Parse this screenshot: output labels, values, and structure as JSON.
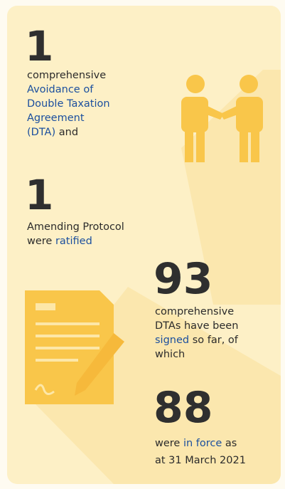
{
  "blocks": [
    {
      "number": 1,
      "text": [
        "comprehensive",
        "Avoidance of",
        "Double Taxation",
        "Agreement",
        "(DTA)",
        "and"
      ]
    },
    {
      "number": 1,
      "text": [
        "Amending Protocol",
        "were",
        "ratified"
      ]
    },
    {
      "number": 93,
      "text": [
        "comprehensive",
        "DTAs have been",
        "signed",
        "so far, of",
        "which"
      ]
    },
    {
      "number": 88,
      "text": [
        "were",
        "in force",
        "as",
        "at 31 March 2021"
      ]
    }
  ]
}
